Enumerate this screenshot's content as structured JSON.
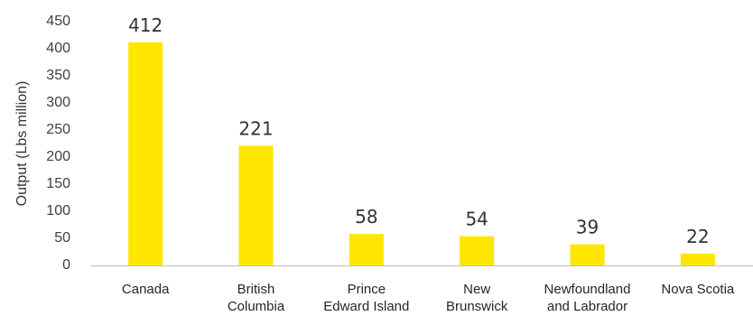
{
  "chart_data": {
    "type": "bar",
    "title": "",
    "xlabel": "",
    "ylabel": "Output (Lbs million)",
    "categories": [
      [
        "Canada"
      ],
      [
        "British",
        "Columbia"
      ],
      [
        "Prince",
        "Edward Island"
      ],
      [
        "New",
        "Brunswick"
      ],
      [
        "Newfoundland",
        "and Labrador"
      ],
      [
        "Nova Scotia"
      ]
    ],
    "values": [
      412,
      221,
      58,
      54,
      39,
      22
    ],
    "ylim": [
      0,
      450
    ],
    "yticks": [
      0,
      50,
      100,
      150,
      200,
      250,
      300,
      350,
      400,
      450
    ],
    "grid": false,
    "legend": "none",
    "colors": {
      "bar": "#ffe600",
      "axis": "#bfbfbf"
    }
  }
}
